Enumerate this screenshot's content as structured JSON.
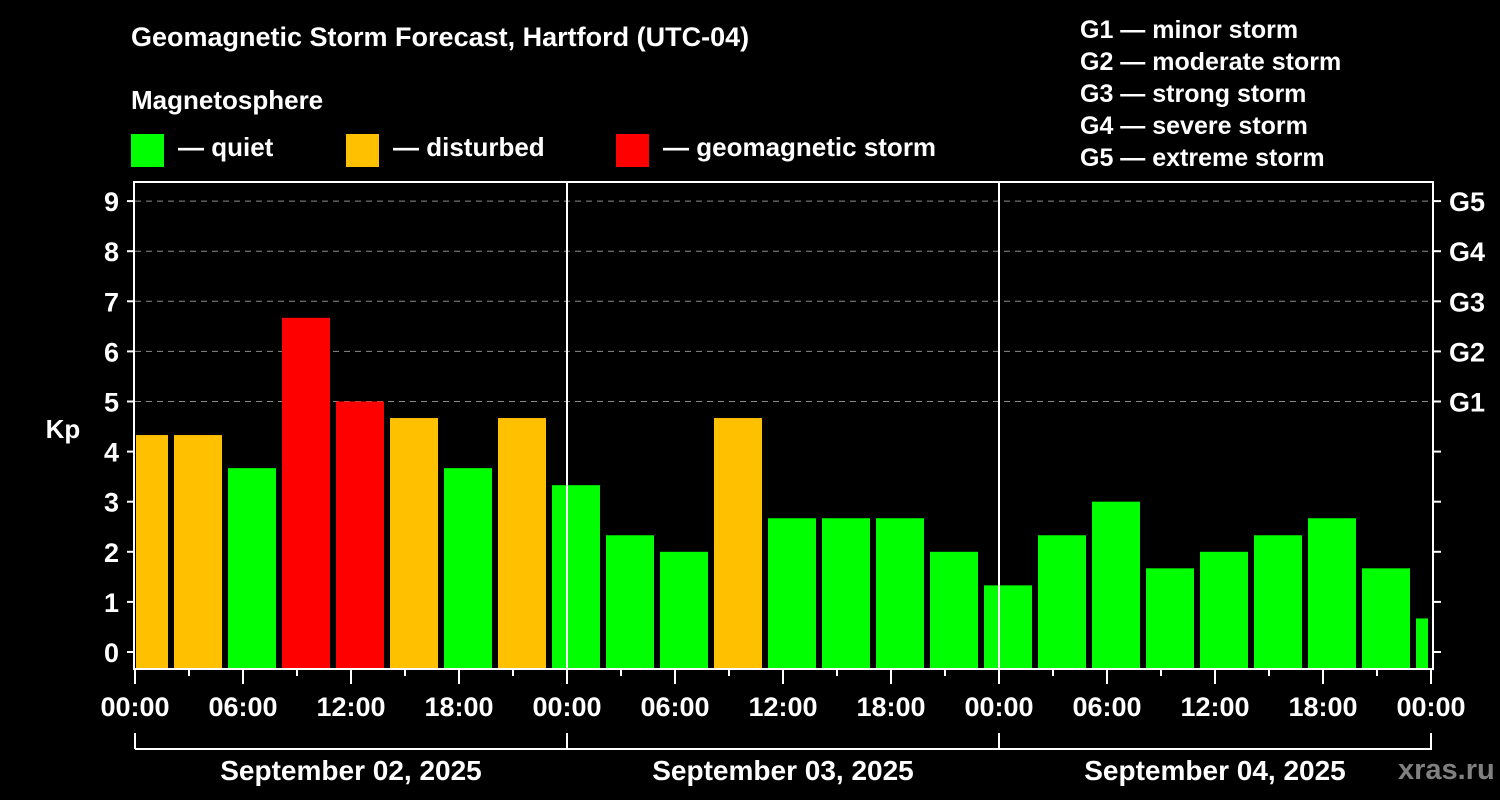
{
  "header": {
    "title": "Geomagnetic Storm Forecast, Hartford (UTC-04)",
    "subtitle": "Magnetosphere"
  },
  "legend": {
    "items": [
      {
        "label": "— quiet",
        "color": "#00ff00"
      },
      {
        "label": "— disturbed",
        "color": "#ffc000"
      },
      {
        "label": "— geomagnetic storm",
        "color": "#ff0000"
      }
    ]
  },
  "g_scale": {
    "items": [
      "G1 — minor storm",
      "G2 — moderate storm",
      "G3 — strong storm",
      "G4 — severe storm",
      "G5 — extreme storm"
    ]
  },
  "watermark": "xras.ru",
  "colors": {
    "quiet": "#00ff00",
    "disturbed": "#ffc000",
    "storm": "#ff0000",
    "grid": "#8c8c8c",
    "axis": "#ffffff",
    "background": "#000000"
  },
  "chart_data": {
    "type": "bar",
    "title": "Geomagnetic Storm Forecast, Hartford (UTC-04)",
    "xlabel": "",
    "ylabel": "Kp",
    "ylim": [
      -0.33,
      9.6
    ],
    "yticks": [
      0,
      1,
      2,
      3,
      4,
      5,
      6,
      7,
      8,
      9
    ],
    "right_axis_labels": [
      {
        "kp": 5,
        "label": "G1"
      },
      {
        "kp": 6,
        "label": "G2"
      },
      {
        "kp": 7,
        "label": "G3"
      },
      {
        "kp": 8,
        "label": "G4"
      },
      {
        "kp": 9,
        "label": "G5"
      }
    ],
    "grid": "dashed horizontal at Kp 5-9",
    "x_tick_labels": [
      "00:00",
      "06:00",
      "12:00",
      "18:00",
      "00:00",
      "06:00",
      "12:00",
      "18:00",
      "00:00",
      "06:00",
      "12:00",
      "18:00",
      "00:00"
    ],
    "days": [
      "September 02, 2025",
      "September 03, 2025",
      "September 04, 2025"
    ],
    "bar_interval_hours": 3,
    "bar_offset_hours": -1,
    "categories": [
      "Sep 02 00:00-02:00",
      "Sep 02 02:00-05:00",
      "Sep 02 05:00-08:00",
      "Sep 02 08:00-11:00",
      "Sep 02 11:00-14:00",
      "Sep 02 14:00-17:00",
      "Sep 02 17:00-20:00",
      "Sep 02 20:00-23:00",
      "Sep 02 23:00-02:00",
      "Sep 03 02:00-05:00",
      "Sep 03 05:00-08:00",
      "Sep 03 08:00-11:00",
      "Sep 03 11:00-14:00",
      "Sep 03 14:00-17:00",
      "Sep 03 17:00-20:00",
      "Sep 03 20:00-23:00",
      "Sep 03 23:00-02:00",
      "Sep 04 02:00-05:00",
      "Sep 04 05:00-08:00",
      "Sep 04 08:00-11:00",
      "Sep 04 11:00-14:00",
      "Sep 04 14:00-17:00",
      "Sep 04 17:00-20:00",
      "Sep 04 20:00-23:00",
      "Sep 04 23:00-00:00"
    ],
    "values": [
      4.33,
      4.33,
      3.67,
      6.67,
      5.0,
      4.67,
      3.67,
      4.67,
      3.33,
      2.33,
      2.0,
      4.67,
      2.67,
      2.67,
      2.67,
      2.0,
      1.33,
      2.33,
      3.0,
      1.67,
      2.0,
      2.33,
      2.67,
      1.67,
      0.67
    ],
    "status": [
      "disturbed",
      "disturbed",
      "quiet",
      "storm",
      "storm",
      "disturbed",
      "quiet",
      "disturbed",
      "quiet",
      "quiet",
      "quiet",
      "disturbed",
      "quiet",
      "quiet",
      "quiet",
      "quiet",
      "quiet",
      "quiet",
      "quiet",
      "quiet",
      "quiet",
      "quiet",
      "quiet",
      "quiet",
      "quiet"
    ],
    "legend": [
      "quiet",
      "disturbed",
      "geomagnetic storm"
    ]
  }
}
